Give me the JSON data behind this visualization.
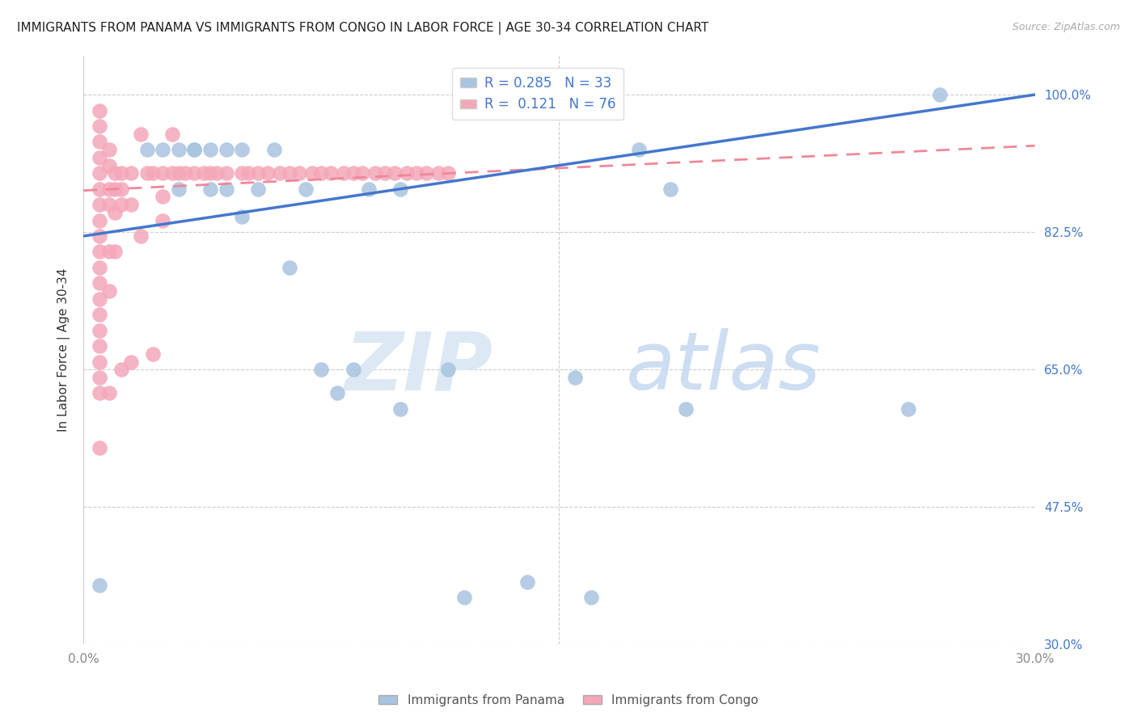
{
  "title": "IMMIGRANTS FROM PANAMA VS IMMIGRANTS FROM CONGO IN LABOR FORCE | AGE 30-34 CORRELATION CHART",
  "source": "Source: ZipAtlas.com",
  "ylabel": "In Labor Force | Age 30-34",
  "xlim": [
    0.0,
    0.3
  ],
  "ylim": [
    0.3,
    1.05
  ],
  "xticks": [
    0.0,
    0.05,
    0.1,
    0.15,
    0.2,
    0.25,
    0.3
  ],
  "xticklabels": [
    "0.0%",
    "",
    "",
    "",
    "",
    "",
    "30.0%"
  ],
  "ytick_positions": [
    0.3,
    0.475,
    0.65,
    0.825,
    1.0
  ],
  "yticklabels": [
    "30.0%",
    "47.5%",
    "65.0%",
    "82.5%",
    "100.0%"
  ],
  "panama_R": 0.285,
  "panama_N": 33,
  "congo_R": 0.121,
  "congo_N": 76,
  "panama_color": "#a8c4e0",
  "congo_color": "#f4a7b9",
  "panama_line_color": "#4477cc",
  "congo_line_color": "#ee8899",
  "legend_label_panama": "Immigrants from Panama",
  "legend_label_congo": "Immigrants from Congo",
  "panama_line_x0": 0.0,
  "panama_line_y0": 0.82,
  "panama_line_x1": 0.3,
  "panama_line_y1": 1.0,
  "congo_line_x0": 0.0,
  "congo_line_y0": 0.878,
  "congo_line_x1": 0.3,
  "congo_line_y1": 0.935,
  "panama_x": [
    0.005,
    0.02,
    0.025,
    0.03,
    0.03,
    0.035,
    0.035,
    0.04,
    0.04,
    0.045,
    0.045,
    0.05,
    0.05,
    0.055,
    0.06,
    0.065,
    0.07,
    0.075,
    0.08,
    0.085,
    0.09,
    0.1,
    0.1,
    0.115,
    0.12,
    0.14,
    0.155,
    0.16,
    0.175,
    0.185,
    0.19,
    0.26,
    0.27
  ],
  "panama_y": [
    0.375,
    0.93,
    0.93,
    0.93,
    0.88,
    0.93,
    0.93,
    0.93,
    0.88,
    0.88,
    0.93,
    0.93,
    0.845,
    0.88,
    0.93,
    0.78,
    0.88,
    0.65,
    0.62,
    0.65,
    0.88,
    0.6,
    0.88,
    0.65,
    0.36,
    0.38,
    0.64,
    0.36,
    0.93,
    0.88,
    0.6,
    0.6,
    1.0
  ],
  "congo_x": [
    0.005,
    0.005,
    0.005,
    0.005,
    0.005,
    0.005,
    0.005,
    0.005,
    0.005,
    0.005,
    0.005,
    0.005,
    0.005,
    0.005,
    0.005,
    0.005,
    0.005,
    0.005,
    0.005,
    0.005,
    0.008,
    0.008,
    0.008,
    0.008,
    0.008,
    0.008,
    0.008,
    0.01,
    0.01,
    0.01,
    0.01,
    0.012,
    0.012,
    0.012,
    0.012,
    0.015,
    0.015,
    0.015,
    0.018,
    0.018,
    0.02,
    0.022,
    0.022,
    0.025,
    0.025,
    0.025,
    0.028,
    0.028,
    0.03,
    0.032,
    0.035,
    0.038,
    0.04,
    0.042,
    0.045,
    0.05,
    0.052,
    0.055,
    0.058,
    0.062,
    0.065,
    0.068,
    0.072,
    0.075,
    0.078,
    0.082,
    0.085,
    0.088,
    0.092,
    0.095,
    0.098,
    0.102,
    0.105,
    0.108,
    0.112,
    0.115
  ],
  "congo_y": [
    0.98,
    0.96,
    0.94,
    0.92,
    0.9,
    0.88,
    0.86,
    0.84,
    0.82,
    0.8,
    0.78,
    0.76,
    0.74,
    0.72,
    0.7,
    0.68,
    0.66,
    0.64,
    0.62,
    0.55,
    0.93,
    0.91,
    0.88,
    0.86,
    0.8,
    0.75,
    0.62,
    0.9,
    0.88,
    0.85,
    0.8,
    0.9,
    0.88,
    0.86,
    0.65,
    0.9,
    0.86,
    0.66,
    0.95,
    0.82,
    0.9,
    0.9,
    0.67,
    0.9,
    0.87,
    0.84,
    0.95,
    0.9,
    0.9,
    0.9,
    0.9,
    0.9,
    0.9,
    0.9,
    0.9,
    0.9,
    0.9,
    0.9,
    0.9,
    0.9,
    0.9,
    0.9,
    0.9,
    0.9,
    0.9,
    0.9,
    0.9,
    0.9,
    0.9,
    0.9,
    0.9,
    0.9,
    0.9,
    0.9,
    0.9,
    0.9
  ]
}
